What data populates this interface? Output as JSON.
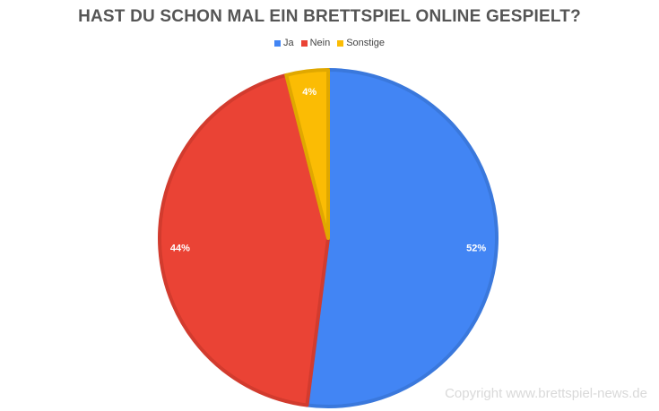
{
  "chart_data": {
    "type": "pie",
    "title": "HAST DU SCHON MAL EIN BRETTSPIEL ONLINE GESPIELT?",
    "categories": [
      "Ja",
      "Nein",
      "Sonstige"
    ],
    "values": [
      52,
      44,
      4
    ],
    "labels": [
      "52%",
      "44%",
      "4%"
    ],
    "colors": [
      "#4285F4",
      "#EA4335",
      "#FBBC04"
    ],
    "border_colors": [
      "#3A78DC",
      "#D23B2E",
      "#E0A800"
    ],
    "legend_position": "top",
    "start_angle_deg": 0,
    "direction": "clockwise"
  },
  "legend": [
    {
      "label": "Ja",
      "color": "#4285F4"
    },
    {
      "label": "Nein",
      "color": "#EA4335"
    },
    {
      "label": "Sonstige",
      "color": "#FBBC04"
    }
  ],
  "copyright": "Copyright www.brettspiel-news.de"
}
